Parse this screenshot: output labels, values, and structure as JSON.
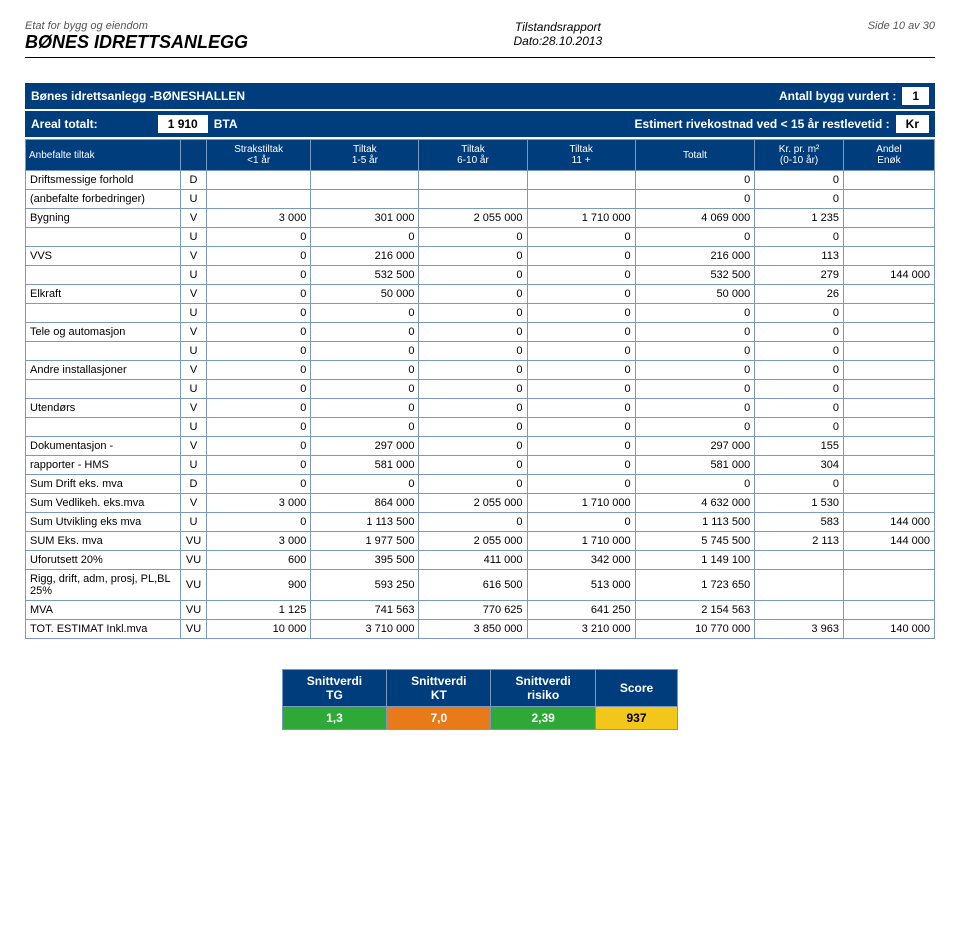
{
  "header": {
    "dept_label": "Etat for bygg og eiendom",
    "facility": "BØNES IDRETTSANLEGG",
    "report_type": "Tilstandsrapport",
    "date_label": "Dato:28.10.2013",
    "page_label": "Side 10 av 30"
  },
  "bar1": {
    "title": "Bønes idrettsanlegg -BØNESHALLEN",
    "assessed_label": "Antall bygg vurdert :",
    "assessed_value": "1"
  },
  "bar2": {
    "area_label": "Areal totalt:",
    "area_value": "1 910",
    "area_unit": "BTA",
    "cost_label": "Estimert rivekostnad ved < 15 år restlevetid :",
    "cost_unit": "Kr"
  },
  "columns": {
    "c0": "Anbefalte tiltak",
    "c1": "",
    "c2_top": "Strakstiltak",
    "c2_bot": "<1 år",
    "c3_top": "Tiltak",
    "c3_bot": "1-5 år",
    "c4_top": "Tiltak",
    "c4_bot": "6-10 år",
    "c5_top": "Tiltak",
    "c5_bot": "11 +",
    "c6": "Totalt",
    "c7_top": "Kr. pr. m²",
    "c7_bot": "(0-10 år)",
    "c8_top": "Andel",
    "c8_bot": "Enøk"
  },
  "rows": [
    {
      "label": "Driftsmessige forhold",
      "code": "D",
      "v": [
        "",
        "",
        "",
        "",
        "0",
        "0",
        ""
      ]
    },
    {
      "label": "(anbefalte forbedringer)",
      "code": "U",
      "v": [
        "",
        "",
        "",
        "",
        "0",
        "0",
        ""
      ]
    },
    {
      "label": "Bygning",
      "code": "V",
      "v": [
        "3 000",
        "301 000",
        "2 055 000",
        "1 710 000",
        "4 069 000",
        "1 235",
        ""
      ]
    },
    {
      "label": "",
      "code": "U",
      "v": [
        "0",
        "0",
        "0",
        "0",
        "0",
        "0",
        ""
      ]
    },
    {
      "label": "VVS",
      "code": "V",
      "v": [
        "0",
        "216 000",
        "0",
        "0",
        "216 000",
        "113",
        ""
      ]
    },
    {
      "label": "",
      "code": "U",
      "v": [
        "0",
        "532 500",
        "0",
        "0",
        "532 500",
        "279",
        "144 000"
      ]
    },
    {
      "label": "Elkraft",
      "code": "V",
      "v": [
        "0",
        "50 000",
        "0",
        "0",
        "50 000",
        "26",
        ""
      ]
    },
    {
      "label": "",
      "code": "U",
      "v": [
        "0",
        "0",
        "0",
        "0",
        "0",
        "0",
        ""
      ]
    },
    {
      "label": "Tele og automasjon",
      "code": "V",
      "v": [
        "0",
        "0",
        "0",
        "0",
        "0",
        "0",
        ""
      ]
    },
    {
      "label": "",
      "code": "U",
      "v": [
        "0",
        "0",
        "0",
        "0",
        "0",
        "0",
        ""
      ]
    },
    {
      "label": "Andre installasjoner",
      "code": "V",
      "v": [
        "0",
        "0",
        "0",
        "0",
        "0",
        "0",
        ""
      ]
    },
    {
      "label": "",
      "code": "U",
      "v": [
        "0",
        "0",
        "0",
        "0",
        "0",
        "0",
        ""
      ]
    },
    {
      "label": "Utendørs",
      "code": "V",
      "v": [
        "0",
        "0",
        "0",
        "0",
        "0",
        "0",
        ""
      ]
    },
    {
      "label": "",
      "code": "U",
      "v": [
        "0",
        "0",
        "0",
        "0",
        "0",
        "0",
        ""
      ]
    },
    {
      "label": "Dokumentasjon -",
      "code": "V",
      "v": [
        "0",
        "297 000",
        "0",
        "0",
        "297 000",
        "155",
        ""
      ]
    },
    {
      "label": "rapporter - HMS",
      "code": "U",
      "v": [
        "0",
        "581 000",
        "0",
        "0",
        "581 000",
        "304",
        ""
      ]
    },
    {
      "label": "Sum Drift eks. mva",
      "code": "D",
      "v": [
        "0",
        "0",
        "0",
        "0",
        "0",
        "0",
        ""
      ]
    },
    {
      "label": "Sum Vedlikeh. eks.mva",
      "code": "V",
      "v": [
        "3 000",
        "864 000",
        "2 055 000",
        "1 710 000",
        "4 632 000",
        "1 530",
        ""
      ]
    },
    {
      "label": "Sum Utvikling eks mva",
      "code": "U",
      "v": [
        "0",
        "1 113 500",
        "0",
        "0",
        "1 113 500",
        "583",
        "144 000"
      ]
    },
    {
      "label": "SUM Eks. mva",
      "code": "VU",
      "v": [
        "3 000",
        "1 977 500",
        "2 055 000",
        "1 710 000",
        "5 745 500",
        "2 113",
        "144 000"
      ]
    },
    {
      "label": "Uforutsett 20%",
      "code": "VU",
      "v": [
        "600",
        "395 500",
        "411 000",
        "342 000",
        "1 149 100",
        "",
        ""
      ]
    },
    {
      "label": "Rigg, drift, adm, prosj, PL,BL 25%",
      "code": "VU",
      "v": [
        "900",
        "593 250",
        "616 500",
        "513 000",
        "1 723 650",
        "",
        ""
      ]
    },
    {
      "label": "MVA",
      "code": "VU",
      "v": [
        "1 125",
        "741 563",
        "770 625",
        "641 250",
        "2 154 563",
        "",
        ""
      ]
    },
    {
      "label": "TOT. ESTIMAT Inkl.mva",
      "code": "VU",
      "v": [
        "10 000",
        "3 710 000",
        "3 850 000",
        "3 210 000",
        "10 770 000",
        "3 963",
        "140 000"
      ]
    }
  ],
  "summary": {
    "headers": [
      {
        "top": "Snittverdi",
        "bot": "TG"
      },
      {
        "top": "Snittverdi",
        "bot": "KT"
      },
      {
        "top": "Snittverdi",
        "bot": "risiko"
      },
      {
        "top": "",
        "bot": "Score"
      }
    ],
    "values": [
      {
        "val": "1,3",
        "cls": "c-green"
      },
      {
        "val": "7,0",
        "cls": "c-orange"
      },
      {
        "val": "2,39",
        "cls": "c-green"
      },
      {
        "val": "937",
        "cls": "c-yellow"
      }
    ]
  }
}
